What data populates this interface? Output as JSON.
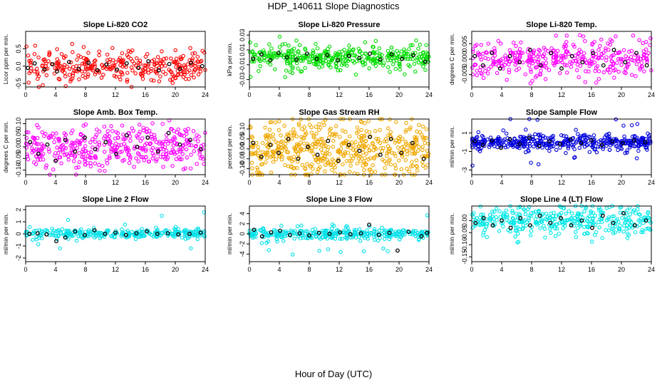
{
  "figure": {
    "title": "HDP_140611  Slope Diagnostics",
    "xlabel": "Hour of Day (UTC)"
  },
  "chart_data": [
    {
      "type": "scatter",
      "title": "Slope Li-820 CO2",
      "ylabel": "Licor ppm per min.",
      "color": "#ff0000",
      "xlim": [
        0,
        24
      ],
      "ylim": [
        -0.6,
        1.0
      ],
      "xticks": [
        0,
        4,
        8,
        12,
        16,
        20,
        24
      ],
      "yticks": [
        -0.5,
        0,
        0.5
      ],
      "ytick_labels": [
        "-0.5",
        "0.0",
        "0.5"
      ],
      "spread": 0.22,
      "outlier": 0.6,
      "density": 320,
      "black": [
        [
          0.3,
          -0.05
        ],
        [
          1.2,
          0.08
        ],
        [
          2.5,
          -0.1
        ],
        [
          3.6,
          0.05
        ],
        [
          4.2,
          -0.15
        ],
        [
          5.8,
          0.12
        ],
        [
          7.1,
          -0.08
        ],
        [
          8.4,
          0.1
        ],
        [
          9.6,
          -0.12
        ],
        [
          10.8,
          0.05
        ],
        [
          12.2,
          -0.1
        ],
        [
          13.5,
          0.08
        ],
        [
          15.1,
          -0.05
        ],
        [
          16.4,
          0.14
        ],
        [
          17.8,
          -0.12
        ],
        [
          19.2,
          0.06
        ],
        [
          20.6,
          -0.08
        ],
        [
          22.1,
          0.1
        ],
        [
          23.6,
          0.0
        ]
      ]
    },
    {
      "type": "scatter",
      "title": "Slope Li-820 Pressure",
      "ylabel": "kPa per min.",
      "color": "#00dd00",
      "xlim": [
        0,
        24
      ],
      "ylim": [
        -0.04,
        0.035
      ],
      "xticks": [
        0,
        4,
        8,
        12,
        16,
        20,
        24
      ],
      "yticks": [
        -0.03,
        -0.01,
        0.01,
        0.03
      ],
      "ytick_labels": [
        "-0.03",
        "-0.01",
        "0.01",
        "0.03"
      ],
      "spread": 0.008,
      "outlier": 0.028,
      "density": 380,
      "black": [
        [
          0.5,
          -0.002
        ],
        [
          1.6,
          0.004
        ],
        [
          2.8,
          -0.004
        ],
        [
          3.9,
          0.006
        ],
        [
          5.0,
          0.0
        ],
        [
          6.3,
          -0.003
        ],
        [
          7.7,
          0.005
        ],
        [
          9.0,
          -0.002
        ],
        [
          10.4,
          0.003
        ],
        [
          11.8,
          -0.004
        ],
        [
          13.3,
          0.002
        ],
        [
          14.7,
          -0.001
        ],
        [
          16.1,
          0.005
        ],
        [
          17.5,
          -0.003
        ],
        [
          19.0,
          0.004
        ],
        [
          20.4,
          -0.002
        ],
        [
          21.9,
          0.003
        ],
        [
          23.5,
          -0.006
        ]
      ]
    },
    {
      "type": "scatter",
      "title": "Slope Li-820 Temp.",
      "ylabel": "degrees C per min.",
      "color": "#ff00ff",
      "xlim": [
        0,
        24
      ],
      "ylim": [
        -0.009,
        0.009
      ],
      "xticks": [
        0,
        4,
        8,
        12,
        16,
        20,
        24
      ],
      "yticks": [
        -0.005,
        0,
        0.005
      ],
      "ytick_labels": [
        "-0.005",
        "0.000",
        "0.005"
      ],
      "spread": 0.003,
      "outlier": 0.008,
      "density": 360,
      "black": [
        [
          0.4,
          0.001
        ],
        [
          1.5,
          -0.002
        ],
        [
          2.7,
          0.002
        ],
        [
          3.8,
          -0.003
        ],
        [
          5.1,
          0.001
        ],
        [
          6.4,
          -0.001
        ],
        [
          7.8,
          0.003
        ],
        [
          9.2,
          -0.002
        ],
        [
          10.6,
          0.002
        ],
        [
          12.0,
          -0.003
        ],
        [
          13.4,
          0.001
        ],
        [
          14.8,
          -0.001
        ],
        [
          16.2,
          0.002
        ],
        [
          17.6,
          -0.002
        ],
        [
          19.0,
          0.003
        ],
        [
          20.5,
          -0.001
        ],
        [
          22.0,
          0.002
        ],
        [
          23.4,
          -0.002
        ]
      ]
    },
    {
      "type": "scatter",
      "title": "Slope Amb. Box Temp.",
      "ylabel": "degrees C per min.",
      "color": "#ff00ff",
      "xlim": [
        0,
        24
      ],
      "ylim": [
        -0.12,
        0.12
      ],
      "xticks": [
        0,
        4,
        8,
        12,
        16,
        20,
        24
      ],
      "yticks": [
        -0.1,
        -0.05,
        0,
        0.05,
        0.1
      ],
      "ytick_labels": [
        "-0.10",
        "-0.05",
        "0.00",
        "0.05",
        "0.10"
      ],
      "spread": 0.045,
      "outlier": 0.1,
      "density": 400,
      "black": [
        [
          0.6,
          0.02
        ],
        [
          1.7,
          -0.03
        ],
        [
          2.9,
          0.01
        ],
        [
          4.0,
          -0.06
        ],
        [
          5.3,
          0.03
        ],
        [
          6.6,
          -0.02
        ],
        [
          7.9,
          0.04
        ],
        [
          9.3,
          -0.01
        ],
        [
          10.7,
          0.02
        ],
        [
          12.1,
          -0.03
        ],
        [
          13.5,
          0.05
        ],
        [
          14.9,
          0.0
        ],
        [
          16.3,
          0.04
        ],
        [
          17.7,
          -0.02
        ],
        [
          19.1,
          0.06
        ],
        [
          20.6,
          0.01
        ],
        [
          22.0,
          0.03
        ],
        [
          23.4,
          -0.01
        ]
      ]
    },
    {
      "type": "scatter",
      "title": "Slope Gas Stream RH",
      "ylabel": "percent per min.",
      "color": "#f0a800",
      "xlim": [
        0,
        24
      ],
      "ylim": [
        -0.13,
        0.15
      ],
      "xticks": [
        0,
        4,
        8,
        12,
        16,
        20,
        24
      ],
      "yticks": [
        -0.1,
        -0.05,
        0,
        0.05,
        0.1
      ],
      "ytick_labels": [
        "-0.10",
        "-0.05",
        "0.00",
        "0.05",
        "0.10"
      ],
      "spread": 0.075,
      "outlier": 0.12,
      "density": 520,
      "black": [
        [
          0.5,
          0.03
        ],
        [
          1.6,
          -0.04
        ],
        [
          2.8,
          0.02
        ],
        [
          3.9,
          -0.02
        ],
        [
          5.2,
          0.05
        ],
        [
          6.5,
          -0.05
        ],
        [
          7.8,
          0.01
        ],
        [
          9.1,
          -0.03
        ],
        [
          10.5,
          0.04
        ],
        [
          11.9,
          -0.06
        ],
        [
          13.3,
          0.02
        ],
        [
          14.7,
          -0.01
        ],
        [
          16.1,
          0.06
        ],
        [
          17.5,
          -0.03
        ],
        [
          18.9,
          0.05
        ],
        [
          20.3,
          -0.02
        ],
        [
          21.8,
          0.03
        ],
        [
          23.3,
          -0.05
        ]
      ]
    },
    {
      "type": "scatter",
      "title": "Slope Sample Flow",
      "ylabel": "ml/min per min.",
      "color": "#0000dd",
      "xlim": [
        0,
        24
      ],
      "ylim": [
        -3.5,
        2.5
      ],
      "xticks": [
        0,
        4,
        8,
        12,
        16,
        20,
        24
      ],
      "yticks": [
        -3,
        -1,
        1
      ],
      "ytick_labels": [
        "-3",
        "-1",
        "1"
      ],
      "spread": 0.45,
      "outlier": 2.6,
      "density": 420,
      "black": [
        [
          0.4,
          0.1
        ],
        [
          1.5,
          -0.3
        ],
        [
          2.7,
          0.2
        ],
        [
          3.9,
          -0.6
        ],
        [
          5.1,
          0.3
        ],
        [
          6.4,
          -0.2
        ],
        [
          7.7,
          0.5
        ],
        [
          9.0,
          -0.4
        ],
        [
          10.4,
          0.1
        ],
        [
          11.8,
          -0.2
        ],
        [
          13.2,
          0.3
        ],
        [
          14.6,
          -0.1
        ],
        [
          16.0,
          0.2
        ],
        [
          17.4,
          -0.3
        ],
        [
          18.8,
          0.1
        ],
        [
          20.2,
          -0.1
        ],
        [
          21.7,
          0.2
        ],
        [
          23.2,
          0.0
        ]
      ]
    },
    {
      "type": "scatter",
      "title": "Slope Line 2 Flow",
      "ylabel": "ml/min per min.",
      "color": "#00e0e8",
      "xlim": [
        0,
        24
      ],
      "ylim": [
        -2.3,
        2.3
      ],
      "xticks": [
        0,
        4,
        8,
        12,
        16,
        20,
        24
      ],
      "yticks": [
        -2,
        -1,
        0,
        1,
        2
      ],
      "ytick_labels": [
        "-2",
        "-1",
        "0",
        "1",
        "2"
      ],
      "spread": 0.2,
      "outlier": 2.0,
      "density": 280,
      "black": [
        [
          0.5,
          0.0
        ],
        [
          1.6,
          0.05
        ],
        [
          2.8,
          -0.05
        ],
        [
          4.1,
          -0.6
        ],
        [
          5.3,
          -0.3
        ],
        [
          6.6,
          0.2
        ],
        [
          7.9,
          -0.1
        ],
        [
          9.2,
          0.3
        ],
        [
          10.6,
          0.0
        ],
        [
          12.0,
          0.1
        ],
        [
          13.4,
          -0.1
        ],
        [
          14.8,
          0.05
        ],
        [
          16.2,
          0.2
        ],
        [
          17.6,
          0.0
        ],
        [
          19.0,
          0.05
        ],
        [
          20.4,
          -0.05
        ],
        [
          21.9,
          0.0
        ],
        [
          23.4,
          0.1
        ]
      ]
    },
    {
      "type": "scatter",
      "title": "Slope Line 3 Flow",
      "ylabel": "ml/min per min.",
      "color": "#00e0e8",
      "xlim": [
        0,
        24
      ],
      "ylim": [
        -5.5,
        5.5
      ],
      "xticks": [
        0,
        4,
        8,
        12,
        16,
        20,
        24
      ],
      "yticks": [
        -4,
        -2,
        0,
        2,
        4
      ],
      "ytick_labels": [
        "-4",
        "-2",
        "0",
        "2",
        "4"
      ],
      "spread": 0.6,
      "outlier": 4.5,
      "density": 320,
      "black": [
        [
          0.6,
          0.8
        ],
        [
          1.7,
          -0.5
        ],
        [
          2.9,
          0.3
        ],
        [
          4.1,
          0.6
        ],
        [
          5.4,
          -0.2
        ],
        [
          6.7,
          0.1
        ],
        [
          8.0,
          -0.3
        ],
        [
          9.3,
          0.2
        ],
        [
          10.7,
          0.0
        ],
        [
          12.1,
          0.3
        ],
        [
          13.5,
          -0.1
        ],
        [
          14.9,
          0.1
        ],
        [
          16.0,
          1.8
        ],
        [
          17.3,
          -0.2
        ],
        [
          18.7,
          0.2
        ],
        [
          19.8,
          -3.3
        ],
        [
          21.3,
          0.4
        ],
        [
          23.0,
          -0.5
        ],
        [
          23.7,
          0.2
        ]
      ]
    },
    {
      "type": "scatter",
      "title": "Slope Line 4 (LT) Flow",
      "ylabel": "ml/min per min.",
      "color": "#00e8e8",
      "xlim": [
        0,
        24
      ],
      "ylim": [
        -0.17,
        0.06
      ],
      "xticks": [
        0,
        4,
        8,
        12,
        16,
        20,
        24
      ],
      "yticks": [
        -0.15,
        -0.1,
        -0.05,
        0
      ],
      "ytick_labels": [
        "-0.15",
        "-0.10",
        "-0.05",
        "0.00"
      ],
      "spread": 0.03,
      "outlier": 0.12,
      "density": 360,
      "black": [
        [
          0.5,
          -0.01
        ],
        [
          1.6,
          0.01
        ],
        [
          2.8,
          -0.02
        ],
        [
          4.0,
          0.0
        ],
        [
          5.2,
          -0.03
        ],
        [
          6.5,
          0.01
        ],
        [
          7.8,
          -0.02
        ],
        [
          9.1,
          0.02
        ],
        [
          10.5,
          -0.01
        ],
        [
          11.9,
          0.01
        ],
        [
          13.3,
          -0.02
        ],
        [
          14.7,
          0.0
        ],
        [
          16.1,
          -0.03
        ],
        [
          17.5,
          0.02
        ],
        [
          18.9,
          -0.01
        ],
        [
          20.3,
          0.03
        ],
        [
          21.8,
          -0.02
        ],
        [
          23.3,
          0.0
        ]
      ]
    }
  ]
}
